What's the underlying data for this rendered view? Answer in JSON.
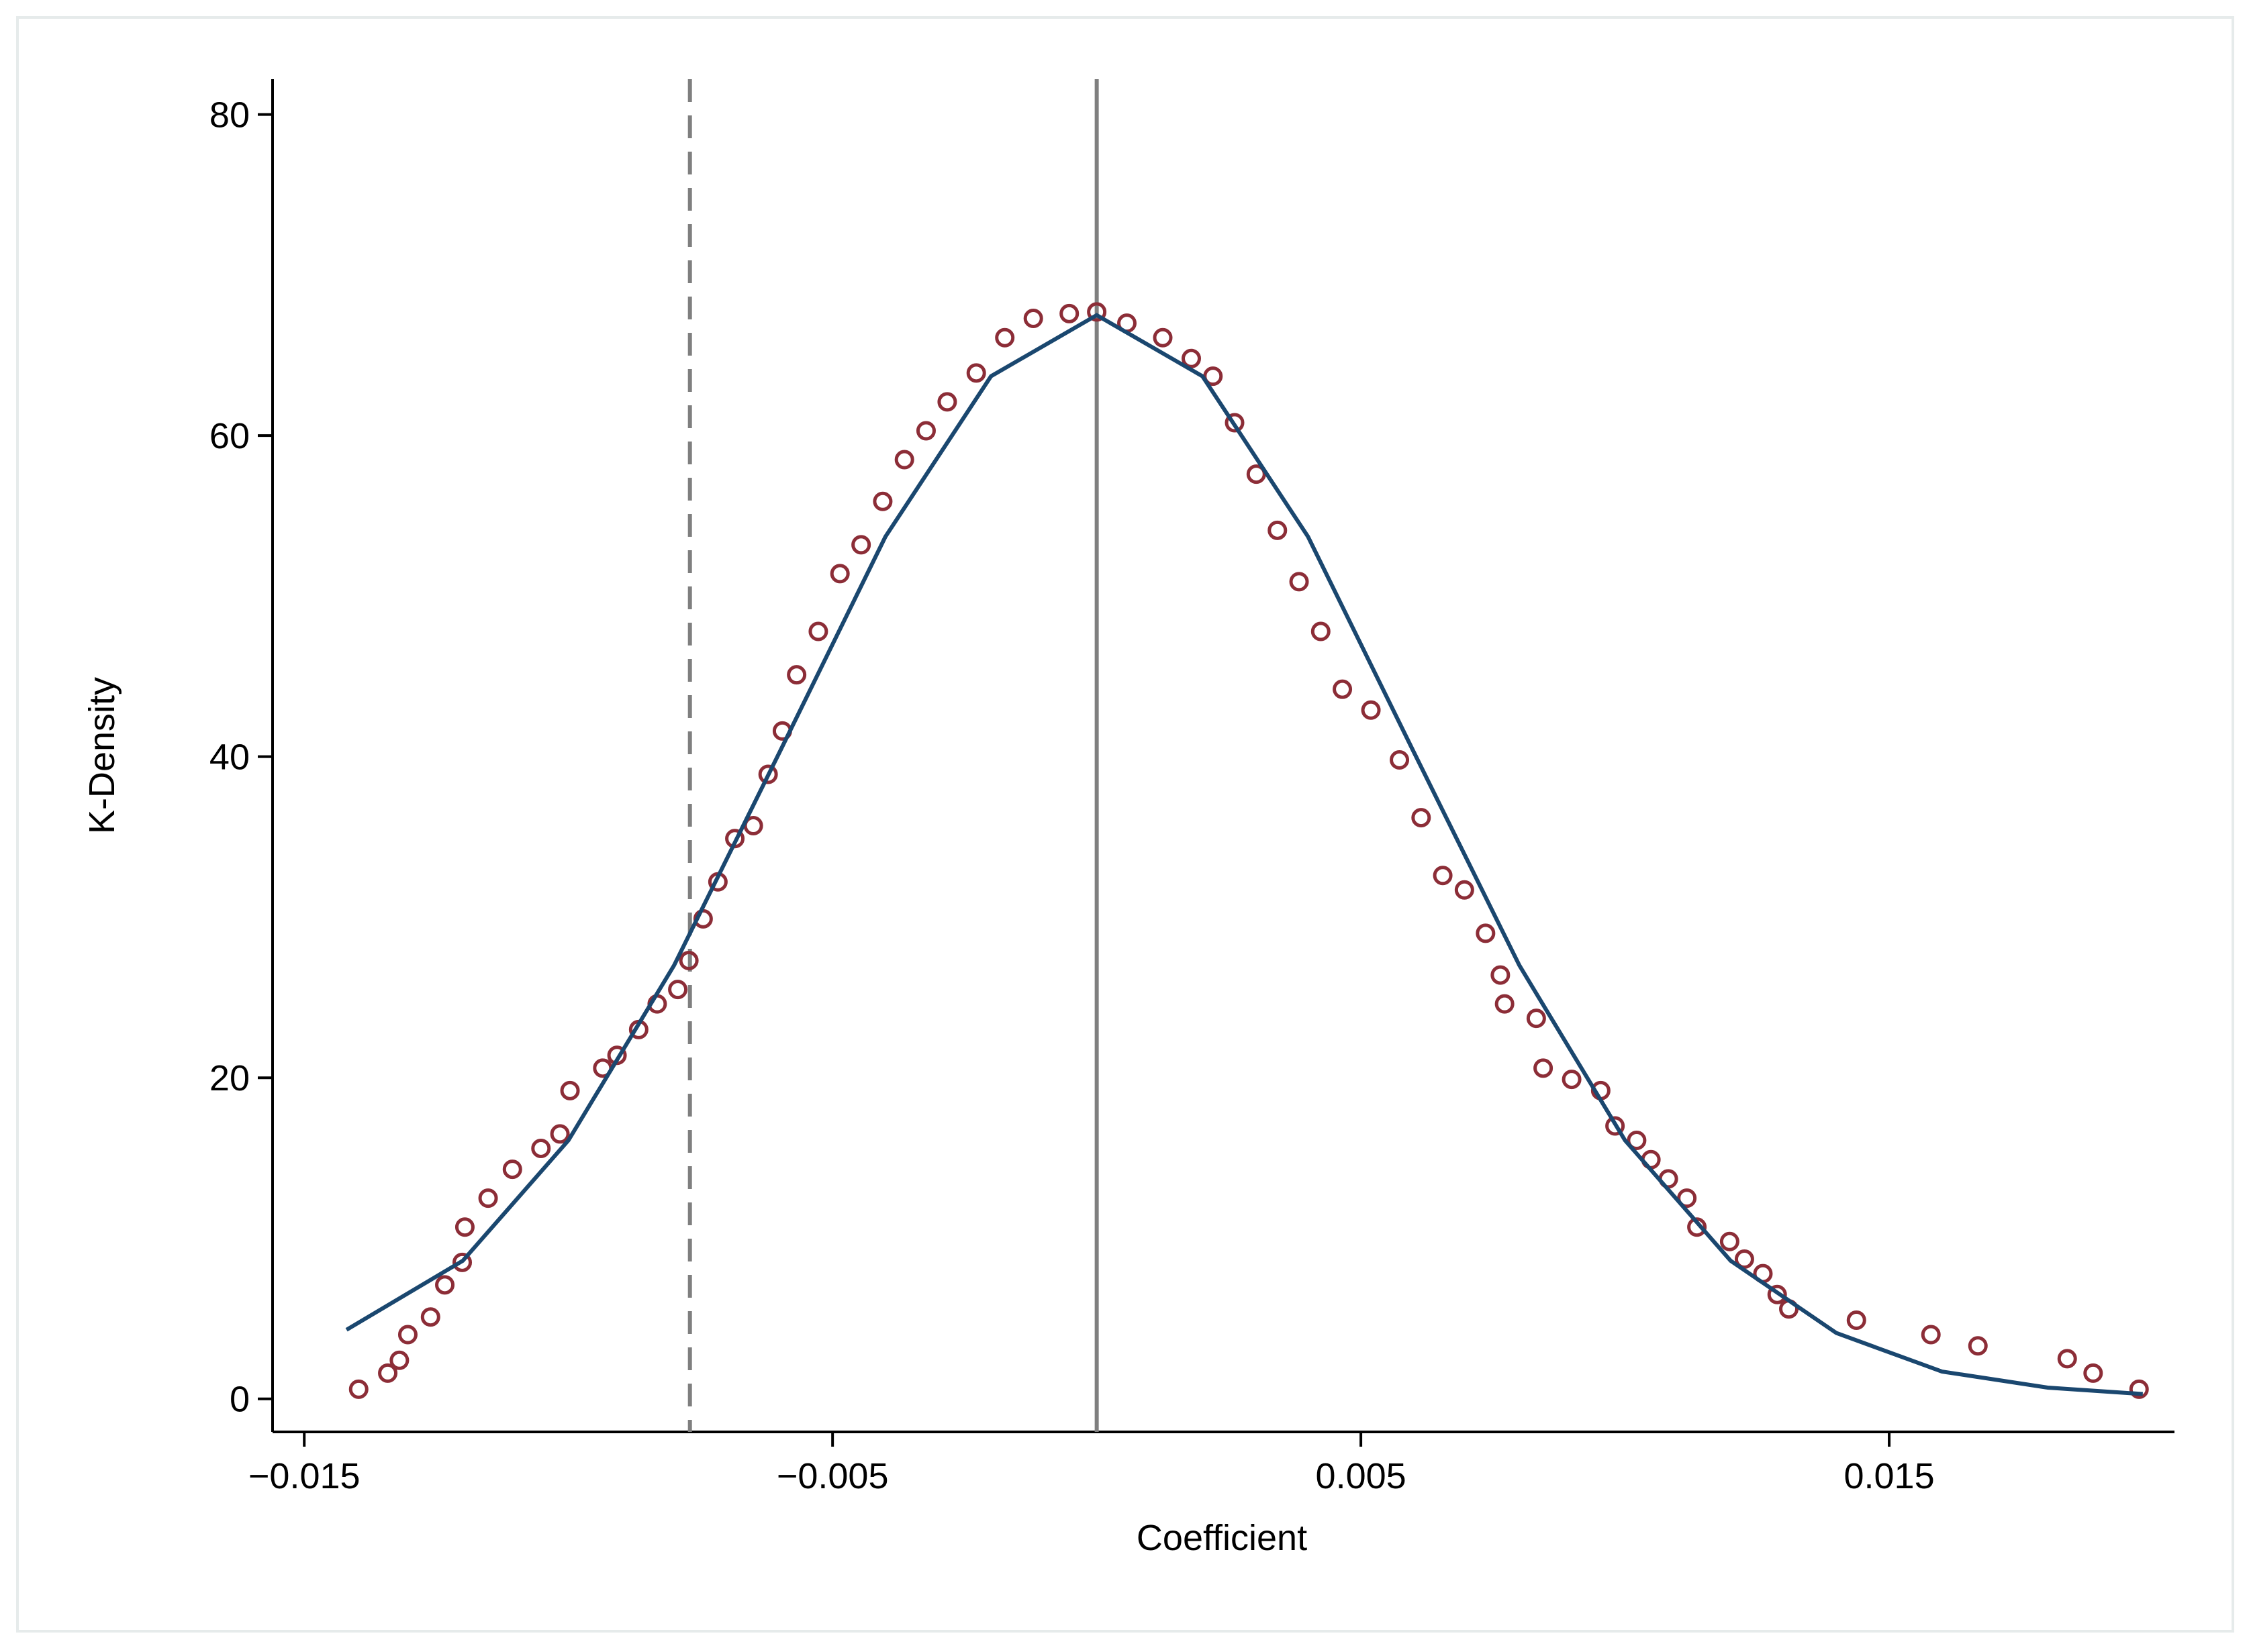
{
  "chart_data": {
    "type": "scatter",
    "x_label": "Coefficient",
    "y_label": "K-Density",
    "xlim": [
      -0.0156,
      0.0204
    ],
    "ylim": [
      -2.06,
      82.2
    ],
    "xticks": [
      {
        "value": -0.015,
        "label": "−0.015"
      },
      {
        "value": -0.005,
        "label": "−0.005"
      },
      0.005,
      0.015
    ],
    "yticks": [
      0,
      20,
      40,
      60,
      80
    ],
    "grid": false,
    "vlines": [
      {
        "x": -0.0077,
        "style": "dashed",
        "color": "#7f7f7f"
      },
      {
        "x": 0,
        "style": "solid",
        "color": "#7f7f7f"
      }
    ],
    "series": [
      {
        "type": "scatter",
        "color": "#8c2d37",
        "x": [
          -0.01397,
          -0.01342,
          -0.0132,
          -0.01304,
          -0.01261,
          -0.01234,
          -0.01201,
          -0.01196,
          -0.01152,
          -0.01106,
          -0.01052,
          -0.01016,
          -0.00997,
          -0.00935,
          -0.00908,
          -0.00867,
          -0.00832,
          -0.00793,
          -0.00772,
          -0.00745,
          -0.00717,
          -0.00685,
          -0.0065,
          -0.00622,
          -0.00595,
          -0.00568,
          -0.00527,
          -0.00486,
          -0.00446,
          -0.00405,
          -0.00364,
          -0.00323,
          -0.00283,
          -0.00228,
          -0.00174,
          -0.0012,
          -0.00052,
          0,
          0.00057,
          0.00125,
          0.00179,
          0.0022,
          0.00261,
          0.00302,
          0.00342,
          0.00383,
          0.00424,
          0.00465,
          0.00519,
          0.00573,
          0.00614,
          0.00655,
          0.00696,
          0.00736,
          0.00764,
          0.00772,
          0.00832,
          0.00845,
          0.00899,
          0.00954,
          0.00981,
          0.01022,
          0.01049,
          0.01082,
          0.01117,
          0.01136,
          0.01198,
          0.01226,
          0.01261,
          0.01288,
          0.0131,
          0.01438,
          0.01579,
          0.01668,
          0.01837,
          0.01886,
          0.01973
        ],
        "values": [
          0.6,
          1.6,
          2.4,
          4.0,
          5.1,
          7.1,
          8.5,
          10.7,
          12.5,
          14.3,
          15.6,
          16.5,
          19.2,
          20.6,
          21.4,
          23.0,
          24.6,
          25.5,
          27.3,
          29.9,
          32.2,
          34.9,
          35.7,
          38.9,
          41.6,
          45.1,
          47.8,
          51.4,
          53.2,
          55.9,
          58.5,
          60.3,
          62.1,
          63.9,
          66.1,
          67.3,
          67.6,
          67.7,
          67.0,
          66.1,
          64.8,
          63.7,
          60.8,
          57.6,
          54.1,
          50.9,
          47.8,
          44.2,
          42.9,
          39.8,
          36.2,
          32.6,
          31.7,
          29.0,
          26.4,
          24.6,
          23.7,
          20.6,
          19.9,
          19.2,
          17.0,
          16.1,
          14.9,
          13.7,
          12.5,
          10.7,
          9.8,
          8.7,
          7.8,
          6.5,
          5.6,
          4.9,
          4.0,
          3.3,
          2.5,
          1.6,
          0.6
        ]
      },
      {
        "type": "line",
        "color": "#1a476f",
        "x": [
          -0.0142,
          -0.012,
          -0.01,
          -0.008,
          -0.006,
          -0.004,
          -0.002,
          0,
          0.002,
          0.004,
          0.006,
          0.008,
          0.01,
          0.012,
          0.014,
          0.016,
          0.018,
          0.0198
        ],
        "values": [
          4.3,
          8.6,
          16.1,
          27.0,
          40.3,
          53.7,
          63.7,
          67.5,
          63.7,
          53.7,
          40.3,
          27.0,
          16.1,
          8.6,
          4.1,
          1.7,
          0.7,
          0.3
        ]
      }
    ]
  }
}
